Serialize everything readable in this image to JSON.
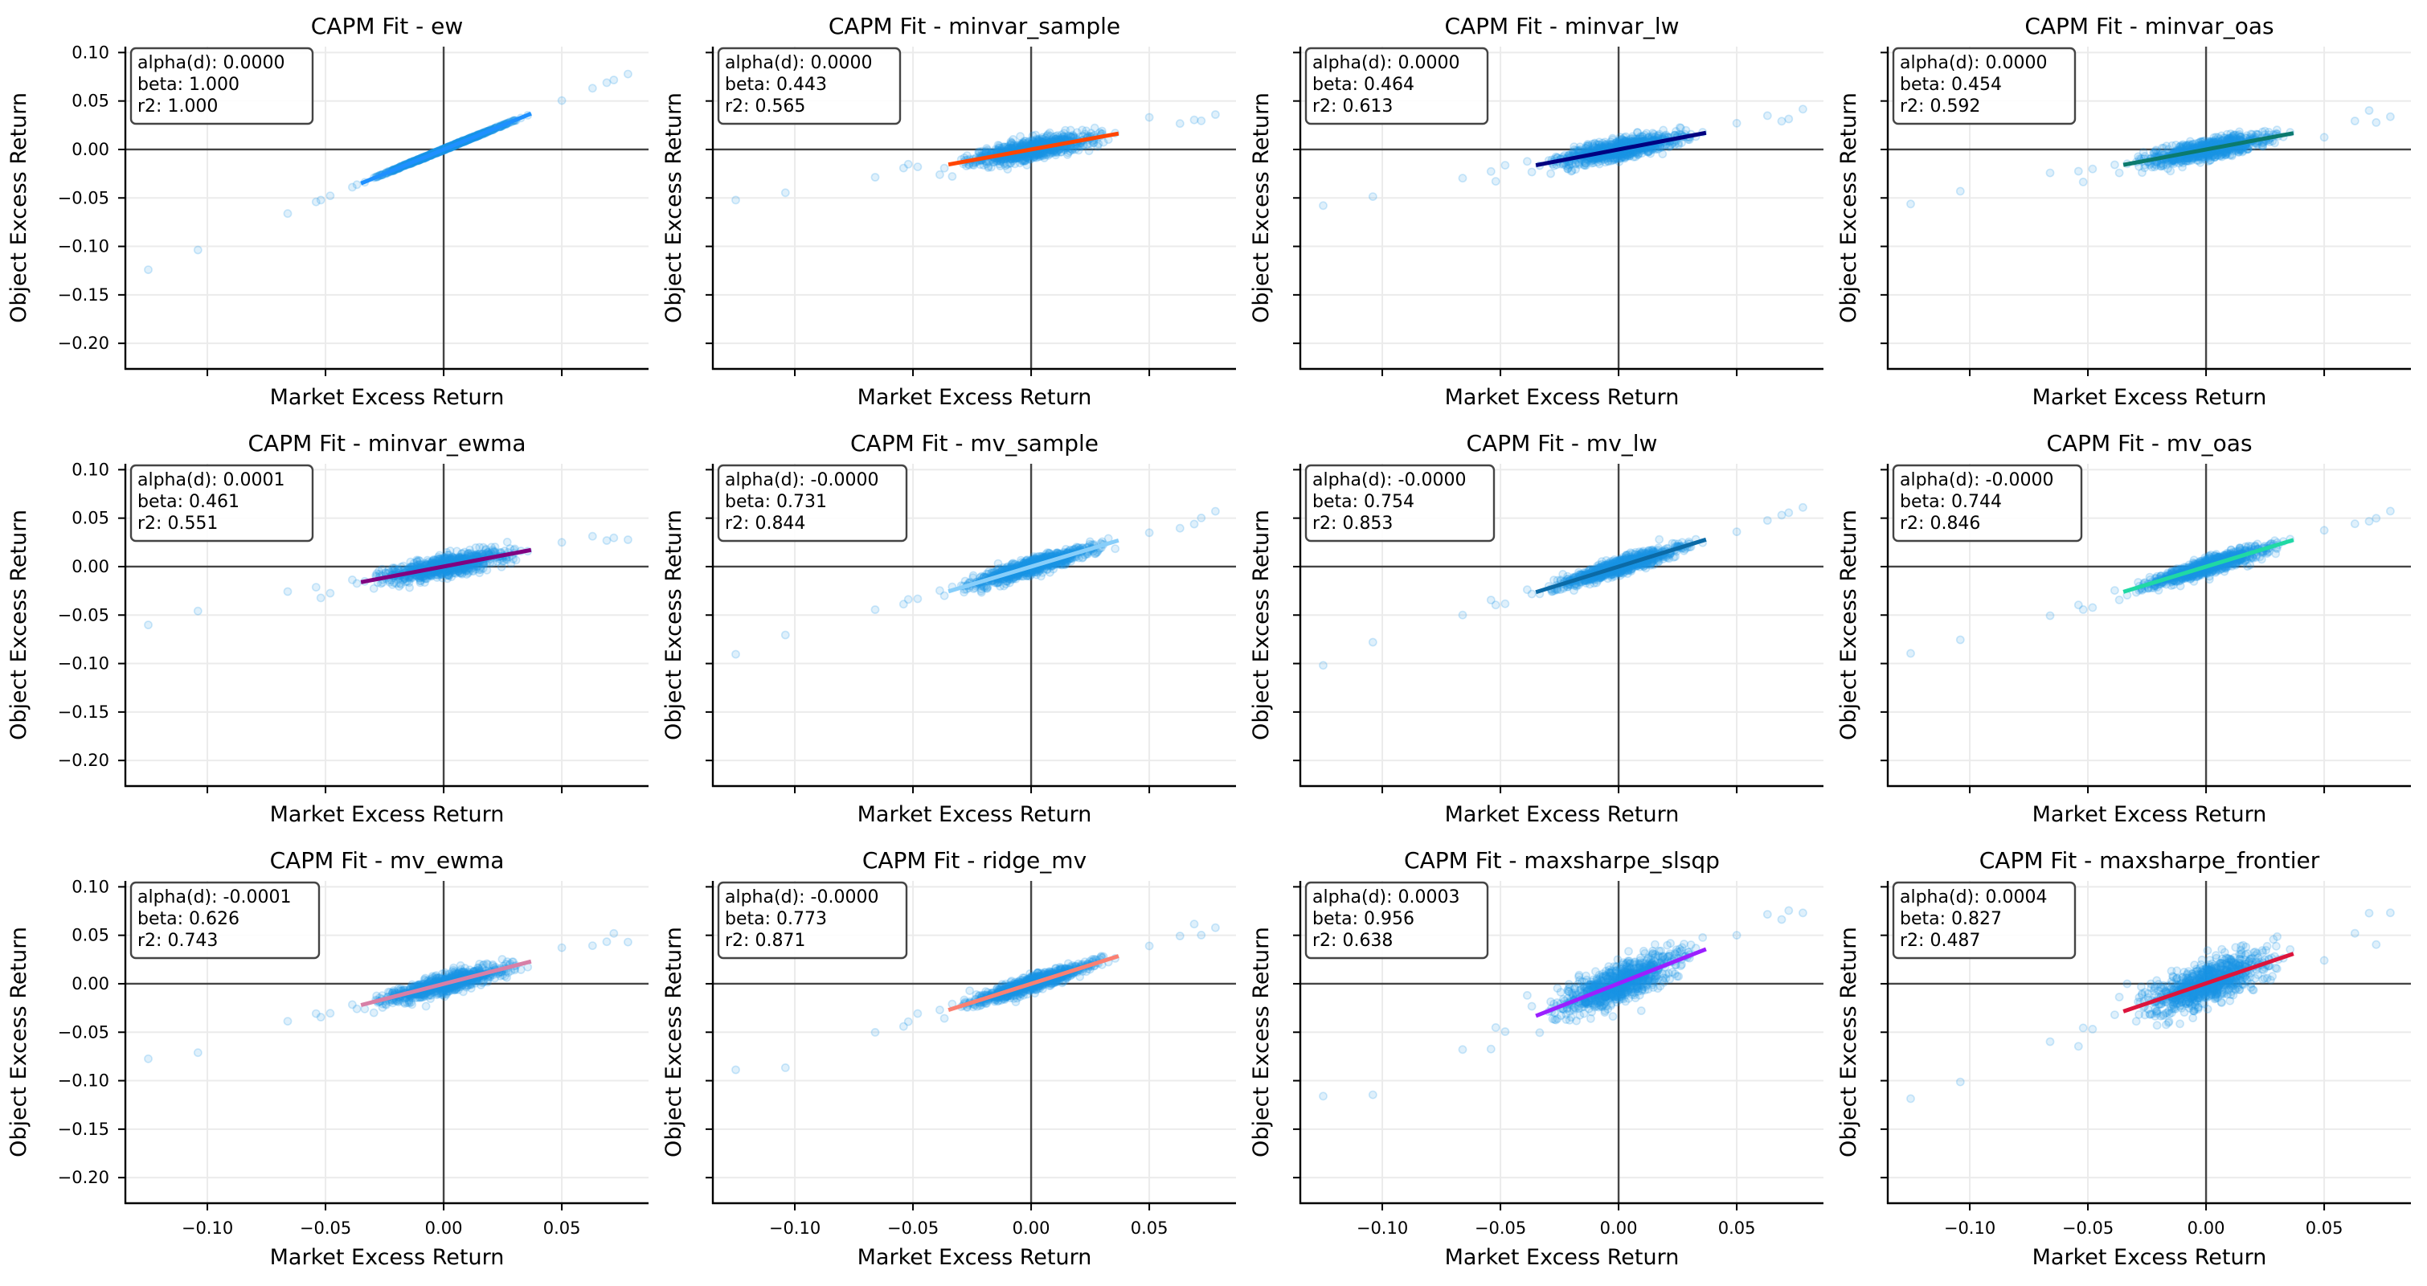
{
  "figure": {
    "panel_title_prefix": "CAPM Fit - "
  },
  "chart_data": {
    "type": "scatter",
    "layout": "grid 3 rows x 4 columns, shared axes",
    "xlabel": "Market Excess Return",
    "ylabel": "Object Excess Return",
    "xlim": [
      -0.1347,
      0.0867
    ],
    "ylim": [
      -0.2264,
      0.1061
    ],
    "xticks": [
      -0.1,
      -0.05,
      0.0,
      0.05
    ],
    "xtick_labels": [
      "−0.10",
      "−0.05",
      "0.00",
      "0.05"
    ],
    "yticks": [
      0.1,
      0.05,
      0.0,
      -0.05,
      -0.1,
      -0.15,
      -0.2
    ],
    "ytick_labels": [
      "0.10",
      "0.05",
      "0.00",
      "−0.05",
      "−0.10",
      "−0.15",
      "−0.20"
    ],
    "grid": true,
    "reference_lines": {
      "x": 0,
      "y": 0
    },
    "point_color": "#1a96e6",
    "fit_line_x_range": [
      -0.035,
      0.037
    ],
    "market_outliers_x": [
      -0.125,
      -0.104,
      -0.066,
      -0.054,
      -0.052,
      -0.048,
      0.05,
      0.063,
      0.069,
      0.072,
      0.078
    ],
    "panels": [
      {
        "name": "ew",
        "alpha_text": "alpha(d): 0.0000",
        "beta_text": "beta: 1.000",
        "r2_text": "r2: 1.000",
        "alpha": 0.0,
        "beta": 1.0,
        "r2": 1.0,
        "line_color": "#1e90ff"
      },
      {
        "name": "minvar_sample",
        "alpha_text": "alpha(d): 0.0000",
        "beta_text": "beta: 0.443",
        "r2_text": "r2: 0.565",
        "alpha": 0.0,
        "beta": 0.443,
        "r2": 0.565,
        "line_color": "#ff4500"
      },
      {
        "name": "minvar_lw",
        "alpha_text": "alpha(d): 0.0000",
        "beta_text": "beta: 0.464",
        "r2_text": "r2: 0.613",
        "alpha": 0.0,
        "beta": 0.464,
        "r2": 0.613,
        "line_color": "#000080"
      },
      {
        "name": "minvar_oas",
        "alpha_text": "alpha(d): 0.0000",
        "beta_text": "beta: 0.454",
        "r2_text": "r2: 0.592",
        "alpha": 0.0,
        "beta": 0.454,
        "r2": 0.592,
        "line_color": "#0b7a6e"
      },
      {
        "name": "minvar_ewma",
        "alpha_text": "alpha(d): 0.0001",
        "beta_text": "beta: 0.461",
        "r2_text": "r2: 0.551",
        "alpha": 0.0001,
        "beta": 0.461,
        "r2": 0.551,
        "line_color": "#800080"
      },
      {
        "name": "mv_sample",
        "alpha_text": "alpha(d): -0.0000",
        "beta_text": "beta: 0.731",
        "r2_text": "r2: 0.844",
        "alpha": -0.0,
        "beta": 0.731,
        "r2": 0.844,
        "line_color": "#87cefa"
      },
      {
        "name": "mv_lw",
        "alpha_text": "alpha(d): -0.0000",
        "beta_text": "beta: 0.754",
        "r2_text": "r2: 0.853",
        "alpha": -0.0,
        "beta": 0.754,
        "r2": 0.853,
        "line_color": "#0b6aa6"
      },
      {
        "name": "mv_oas",
        "alpha_text": "alpha(d): -0.0000",
        "beta_text": "beta: 0.744",
        "r2_text": "r2: 0.846",
        "alpha": -0.0,
        "beta": 0.744,
        "r2": 0.846,
        "line_color": "#20d9a4"
      },
      {
        "name": "mv_ewma",
        "alpha_text": "alpha(d): -0.0001",
        "beta_text": "beta: 0.626",
        "r2_text": "r2: 0.743",
        "alpha": -0.0001,
        "beta": 0.626,
        "r2": 0.743,
        "line_color": "#d77fa6"
      },
      {
        "name": "ridge_mv",
        "alpha_text": "alpha(d): -0.0000",
        "beta_text": "beta: 0.773",
        "r2_text": "r2: 0.871",
        "alpha": -0.0,
        "beta": 0.773,
        "r2": 0.871,
        "line_color": "#fa8072"
      },
      {
        "name": "maxsharpe_slsqp",
        "alpha_text": "alpha(d): 0.0003",
        "beta_text": "beta: 0.956",
        "r2_text": "r2: 0.638",
        "alpha": 0.0003,
        "beta": 0.956,
        "r2": 0.638,
        "line_color": "#9b1fff"
      },
      {
        "name": "maxsharpe_frontier",
        "alpha_text": "alpha(d): 0.0004",
        "beta_text": "beta: 0.827",
        "r2_text": "r2: 0.487",
        "alpha": 0.0004,
        "beta": 0.827,
        "r2": 0.487,
        "line_color": "#dc143c"
      }
    ]
  }
}
